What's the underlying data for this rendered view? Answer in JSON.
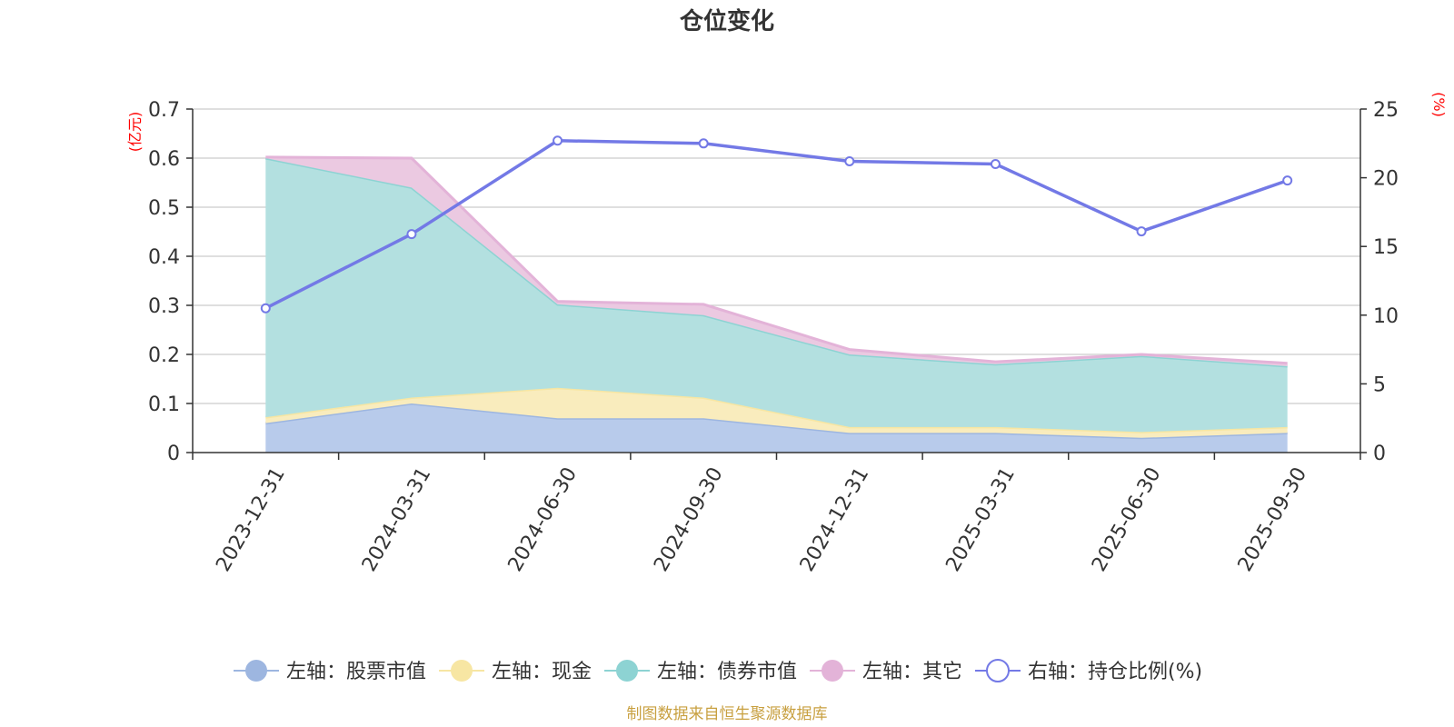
{
  "chart_data": {
    "type": "area",
    "title": "仓位变化",
    "categories": [
      "2023-12-31",
      "2024-03-31",
      "2024-06-30",
      "2024-09-30",
      "2024-12-31",
      "2025-03-31",
      "2025-06-30",
      "2025-09-30"
    ],
    "left_axis": {
      "unit": "(亿元)",
      "ylim": [
        0,
        0.7
      ],
      "ticks": [
        "0",
        "0.1",
        "0.2",
        "0.3",
        "0.4",
        "0.5",
        "0.6",
        "0.7"
      ],
      "tick_values": [
        0,
        0.1,
        0.2,
        0.3,
        0.4,
        0.5,
        0.6,
        0.7
      ]
    },
    "right_axis": {
      "unit": "(%)",
      "ylim": [
        0,
        25
      ],
      "ticks": [
        "0",
        "5",
        "10",
        "15",
        "20",
        "25"
      ],
      "tick_values": [
        0,
        5,
        10,
        15,
        20,
        25
      ]
    },
    "series": [
      {
        "name": "左轴：股票市值",
        "axis": "left",
        "kind": "stacked-area",
        "color": "#9db6e0",
        "fill": "#b8cbeb",
        "values": [
          0.06,
          0.1,
          0.07,
          0.07,
          0.04,
          0.04,
          0.03,
          0.04
        ]
      },
      {
        "name": "左轴：现金",
        "axis": "left",
        "kind": "stacked-area",
        "color": "#f7e6a3",
        "fill": "#f9ecbd",
        "values": [
          0.012,
          0.012,
          0.062,
          0.042,
          0.012,
          0.012,
          0.012,
          0.012
        ]
      },
      {
        "name": "左轴：债券市值",
        "axis": "left",
        "kind": "stacked-area",
        "color": "#8dd3d3",
        "fill": "#b3e0e0",
        "values": [
          0.528,
          0.428,
          0.17,
          0.168,
          0.148,
          0.128,
          0.155,
          0.124
        ]
      },
      {
        "name": "左轴：其它",
        "axis": "left",
        "kind": "stacked-area",
        "color": "#e3b3d8",
        "fill": "#ebc9e1",
        "values": [
          0.002,
          0.06,
          0.006,
          0.022,
          0.01,
          0.005,
          0.003,
          0.006
        ]
      },
      {
        "name": "右轴：持仓比例(%)",
        "axis": "right",
        "kind": "line",
        "color": "#7379e6",
        "values": [
          10.5,
          15.9,
          22.7,
          22.5,
          21.2,
          21.0,
          16.1,
          19.8
        ]
      }
    ],
    "grid": true,
    "legend_position": "bottom",
    "source": "制图数据来自恒生聚源数据库"
  }
}
